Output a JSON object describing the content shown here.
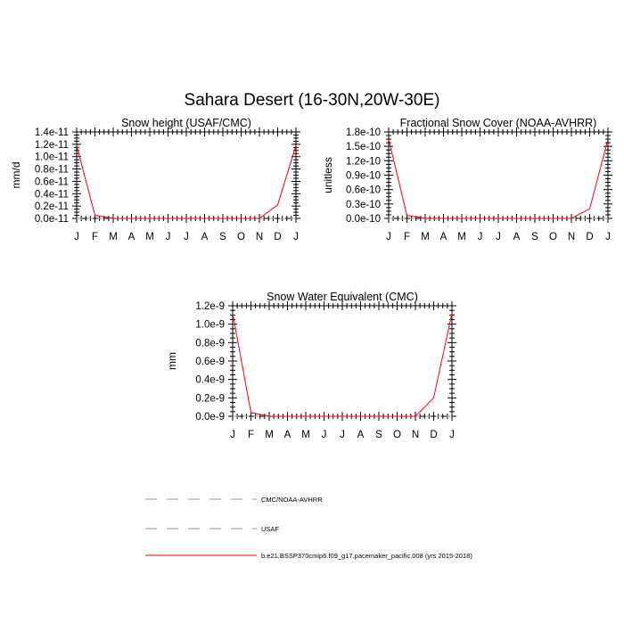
{
  "figure_title": "Sahara Desert (16-30N,20W-30E)",
  "legend": [
    {
      "label": "CMC/NOAA-AVHRR",
      "color": "#9a9a9a",
      "dash": "dashed"
    },
    {
      "label": "USAF",
      "color": "#8a8aa6",
      "dash": "dashed"
    },
    {
      "label": "b.e21.BSSP370cmip6.f09_g17.pacemaker_pacific.008 (yrs 2015-2018)",
      "color": "#ff0000",
      "dash": "solid"
    }
  ],
  "chart_data": [
    {
      "type": "line",
      "title": "Snow height (USAF/CMC)",
      "ylabel": "mm/d",
      "xlabel": "",
      "categories": [
        "J",
        "F",
        "M",
        "A",
        "M",
        "J",
        "J",
        "A",
        "S",
        "O",
        "N",
        "D",
        "J"
      ],
      "ylim": [
        0,
        1.4e-11
      ],
      "yticks": [
        0,
        2e-12,
        4e-12,
        6e-12,
        8e-12,
        1e-11,
        1.2e-11,
        1.4e-11
      ],
      "ytick_labels": [
        "0.0e-11",
        "0.2e-11",
        "0.4e-11",
        "0.6e-11",
        "0.8e-11",
        "1.0e-11",
        "1.2e-11",
        "1.4e-11"
      ],
      "series": [
        {
          "name": "b.e21.BSSP370cmip6.f09_g17.pacemaker_pacific.008 (yrs 2015-2018)",
          "color": "#ff0000",
          "values": [
            1.18e-11,
            5e-13,
            2e-14,
            0,
            0,
            0,
            0,
            0,
            0,
            0,
            0,
            2.2e-12,
            1.18e-11
          ]
        }
      ]
    },
    {
      "type": "line",
      "title": "Fractional Snow Cover (NOAA-AVHRR)",
      "ylabel": "unitless",
      "xlabel": "",
      "categories": [
        "J",
        "F",
        "M",
        "A",
        "M",
        "J",
        "J",
        "A",
        "S",
        "O",
        "N",
        "D",
        "J"
      ],
      "ylim": [
        0,
        1.8e-10
      ],
      "yticks": [
        0,
        3e-11,
        6e-11,
        9e-11,
        1.2e-10,
        1.5e-10,
        1.8e-10
      ],
      "ytick_labels": [
        "0.0e-10",
        "0.3e-10",
        "0.6e-10",
        "0.9e-10",
        "1.2e-10",
        "1.5e-10",
        "1.8e-10"
      ],
      "series": [
        {
          "name": "b.e21.BSSP370cmip6.f09_g17.pacemaker_pacific.008 (yrs 2015-2018)",
          "color": "#ff0000",
          "values": [
            1.65e-10,
            6e-12,
            3e-13,
            0,
            0,
            0,
            0,
            0,
            0,
            0,
            0,
            2e-11,
            1.65e-10
          ]
        }
      ]
    },
    {
      "type": "line",
      "title": "Snow Water Equivalent (CMC)",
      "ylabel": "mm",
      "xlabel": "",
      "categories": [
        "J",
        "F",
        "M",
        "A",
        "M",
        "J",
        "J",
        "A",
        "S",
        "O",
        "N",
        "D",
        "J"
      ],
      "ylim": [
        0,
        1.2e-09
      ],
      "yticks": [
        0,
        2e-10,
        4e-10,
        6e-10,
        8e-10,
        1e-09,
        1.2e-09
      ],
      "ytick_labels": [
        "0.0e-9",
        "0.2e-9",
        "0.4e-9",
        "0.6e-9",
        "0.8e-9",
        "1.0e-9",
        "1.2e-9"
      ],
      "series": [
        {
          "name": "b.e21.BSSP370cmip6.f09_g17.pacemaker_pacific.008 (yrs 2015-2018)",
          "color": "#ff0000",
          "values": [
            1.12e-09,
            4e-11,
            1e-12,
            0,
            0,
            0,
            0,
            0,
            0,
            0,
            0,
            2e-10,
            1.12e-09
          ]
        }
      ]
    }
  ]
}
